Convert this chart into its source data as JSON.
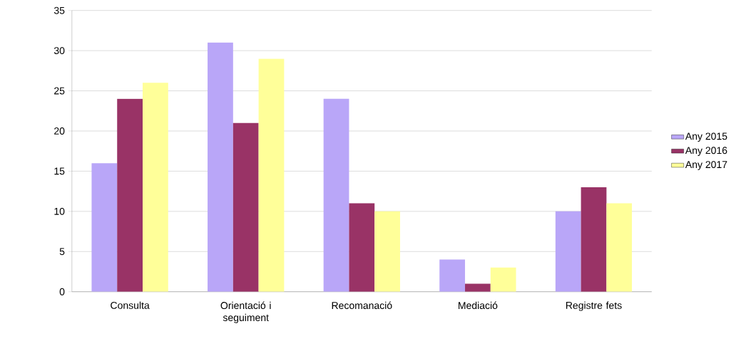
{
  "chart_data": {
    "type": "bar",
    "categories": [
      "Consulta",
      "Orientació i seguiment",
      "Recomanació",
      "Mediació",
      "Registre fets"
    ],
    "series": [
      {
        "name": "Any 2015",
        "color": "#b9a6f8",
        "values": [
          16,
          31,
          24,
          4,
          10
        ]
      },
      {
        "name": "Any 2016",
        "color": "#993366",
        "values": [
          24,
          21,
          11,
          1,
          13
        ]
      },
      {
        "name": "Any 2017",
        "color": "#ffff99",
        "values": [
          26,
          29,
          10,
          3,
          11
        ]
      }
    ],
    "ylim": [
      0,
      35
    ],
    "yticks": [
      0,
      5,
      10,
      15,
      20,
      25,
      30,
      35
    ],
    "grid": "y",
    "legend": "right"
  }
}
